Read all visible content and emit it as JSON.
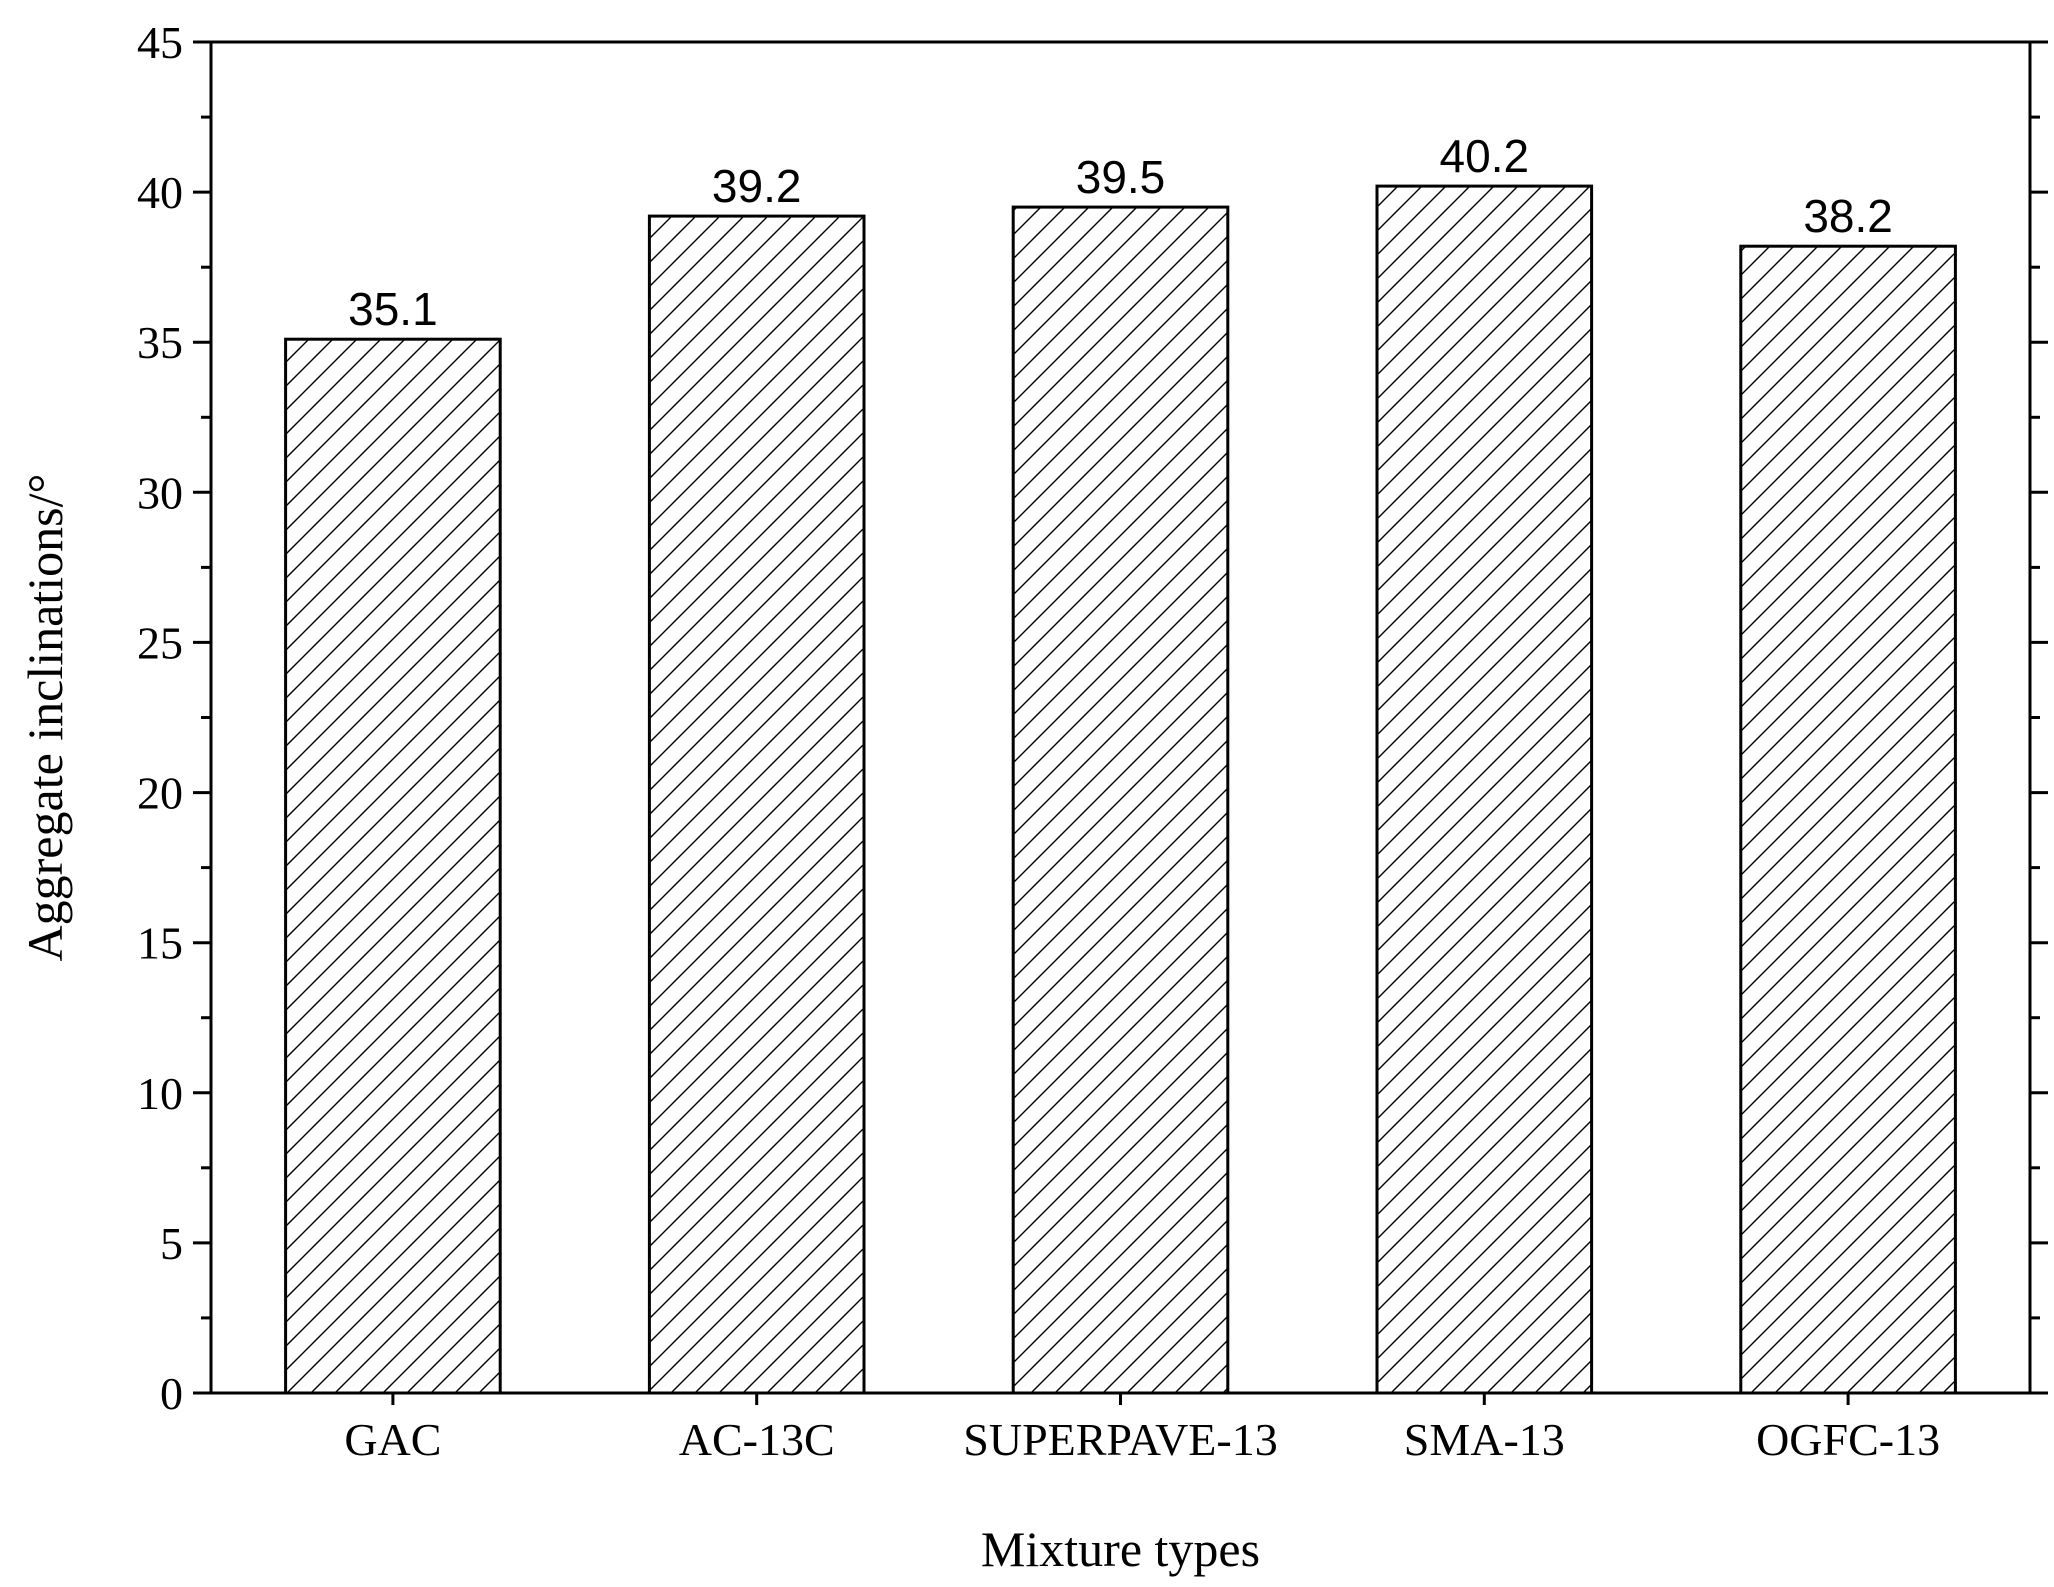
{
  "chart_data": {
    "type": "bar",
    "title": "",
    "xlabel": "Mixture types",
    "ylabel": "Aggregate inclinations/°",
    "categories": [
      "GAC",
      "AC-13C",
      "SUPERPAVE-13",
      "SMA-13",
      "OGFC-13"
    ],
    "values": [
      35.1,
      39.2,
      39.5,
      40.2,
      38.2
    ],
    "data_labels": [
      "35.1",
      "39.2",
      "39.5",
      "40.2",
      "38.2"
    ],
    "ylim": [
      0,
      45
    ],
    "yticks": [
      0,
      5,
      10,
      15,
      20,
      25,
      30,
      35,
      40,
      45
    ],
    "ytick_labels": [
      "0",
      "5",
      "10",
      "15",
      "20",
      "25",
      "30",
      "35",
      "40",
      "45"
    ],
    "grid": false,
    "bar_fill": "hatched",
    "bar_color": "#ffffff",
    "line_color": "#000000"
  }
}
